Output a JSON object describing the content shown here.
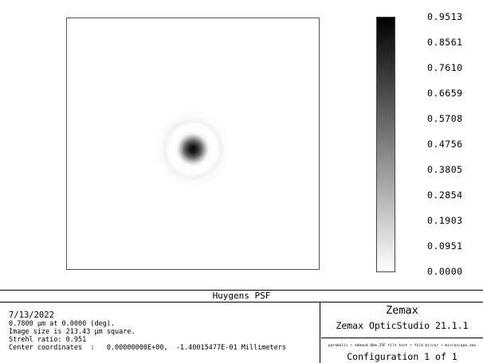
{
  "chart_data": {
    "type": "heatmap",
    "title": "Huygens PSF",
    "colorbar": {
      "ticks": [
        "0.9513",
        "0.8561",
        "0.7610",
        "0.6659",
        "0.5708",
        "0.4756",
        "0.3805",
        "0.2854",
        "0.1903",
        "0.0951",
        "0.0000"
      ],
      "min": 0.0,
      "max": 0.9513,
      "colormap": "grayscale inverted",
      "high_color": "#000000",
      "low_color": "#ffffff"
    },
    "psf": {
      "peak": 0.951,
      "image_size_um": 213.43,
      "center_x_fraction": 0.5,
      "center_y_fraction": 0.522,
      "core_radius_um": 13.4,
      "ring_radius_um": 24.0,
      "ring_width_um": 9.0
    }
  },
  "info": {
    "title": "Huygens PSF",
    "date": "7/13/2022",
    "lines": [
      "0.7800 µm at 0.0000 (deg).",
      "Image size is 213.43 µm square.",
      "Strehl ratio: 0.951",
      "Center coordinates  :   0.00000000E+00,  -1.40015477E-01 Millimeters"
    ],
    "brand": "Zemax",
    "product": "Zemax OpticStudio 21.1.1",
    "filename": "parabolic + edmund 8mm 25F tilt test + fold mirror + microscope.zmx",
    "configuration": "Configuration 1 of 1"
  }
}
